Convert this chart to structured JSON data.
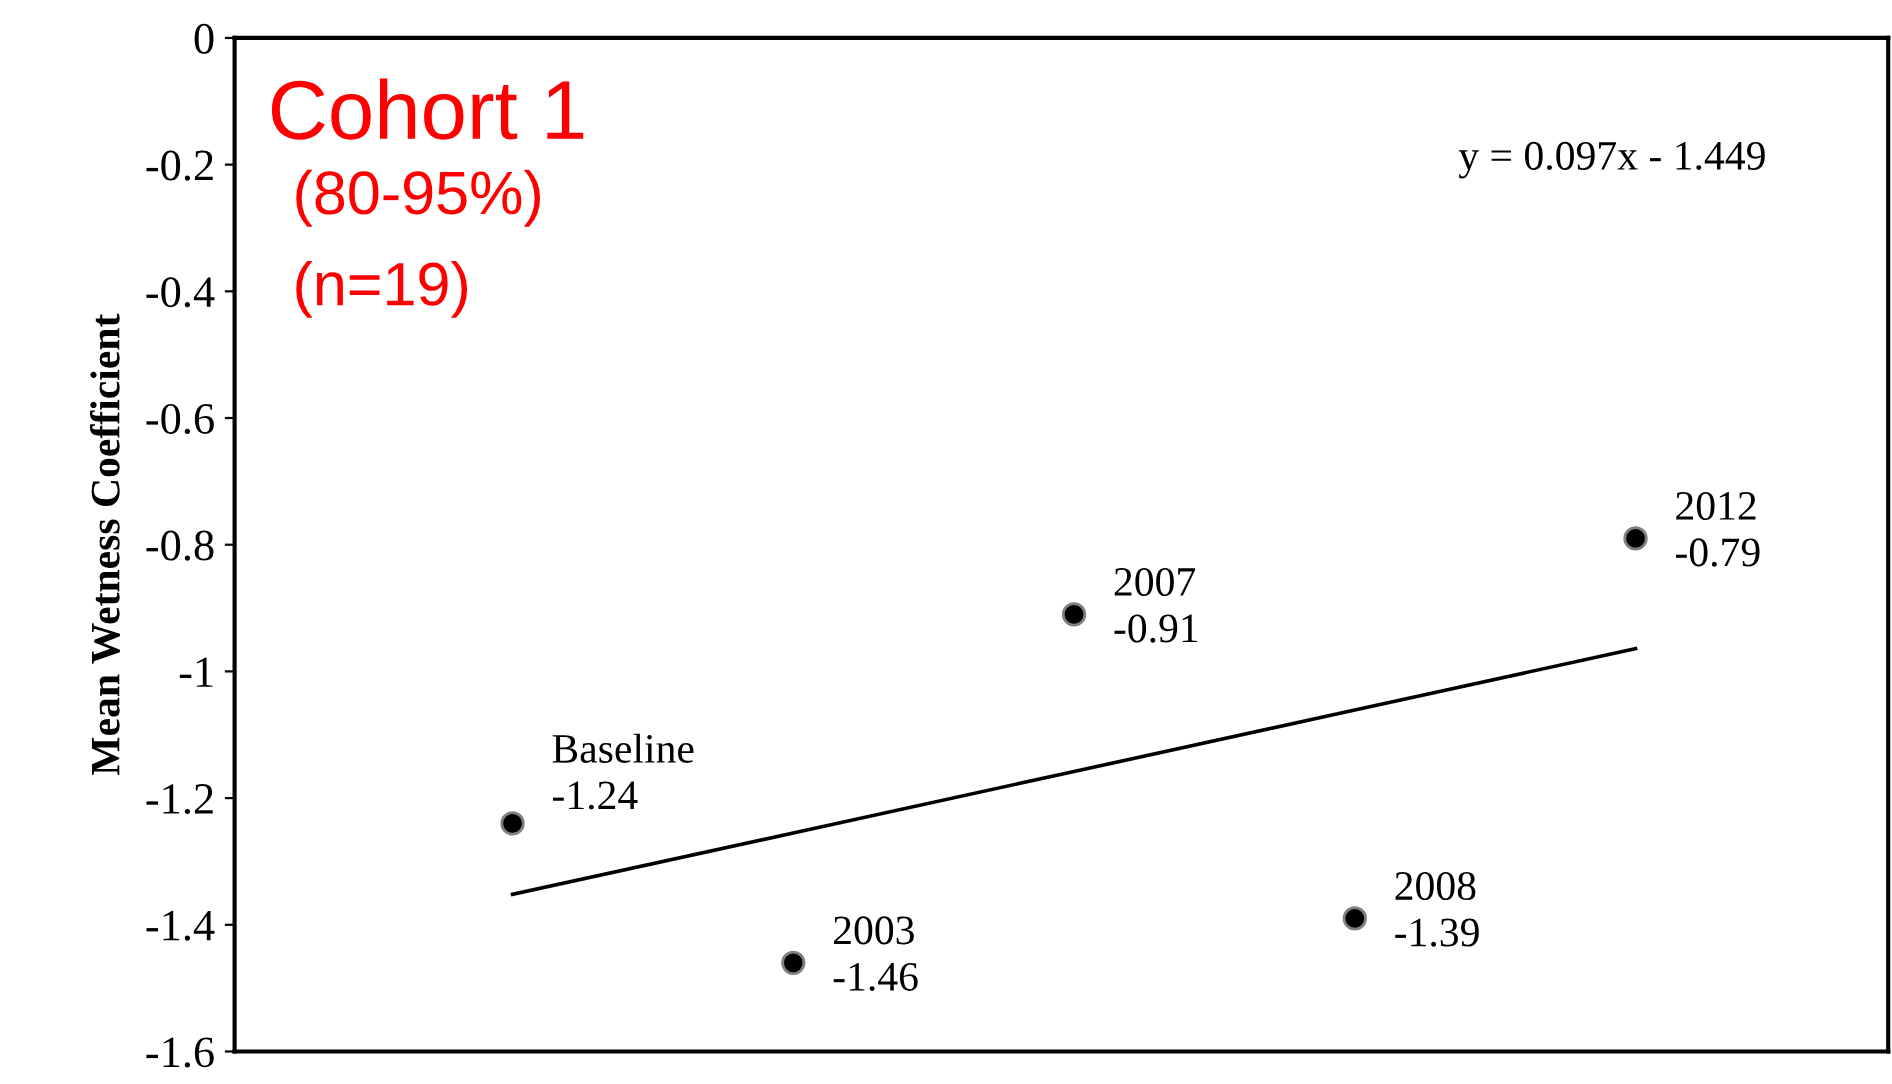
{
  "chart_data": {
    "type": "scatter",
    "ylabel": "Mean Wetness Coefficient",
    "annotations": [
      "Cohort 1",
      "(80-95%)",
      "(n=19)",
      "y = 0.097x - 1.449"
    ],
    "categories": [
      null,
      null,
      null,
      null,
      null
    ],
    "ylim": [
      -1.6,
      0
    ],
    "yticks": [
      0,
      -0.2,
      -0.4,
      -0.6,
      -0.8,
      -1,
      -1.2,
      -1.4,
      -1.6
    ],
    "tick_labels": "y",
    "marker": "circle",
    "series": [
      {
        "color": "#000000",
        "values": [
          -1.24,
          -1.46,
          -0.91,
          -1.39,
          -0.79
        ],
        "value_labels": [
          "Baseline\n-1.24",
          "2003\n-1.46",
          "2007\n-0.91",
          "2008\n-1.39",
          "2012\n-0.79"
        ]
      },
      {
        "type": "line",
        "color": "#000000",
        "line_style": "solid",
        "marker": "none",
        "values": [
          -1.352,
          -1.255,
          -1.158,
          -1.061,
          -0.964
        ]
      }
    ]
  }
}
